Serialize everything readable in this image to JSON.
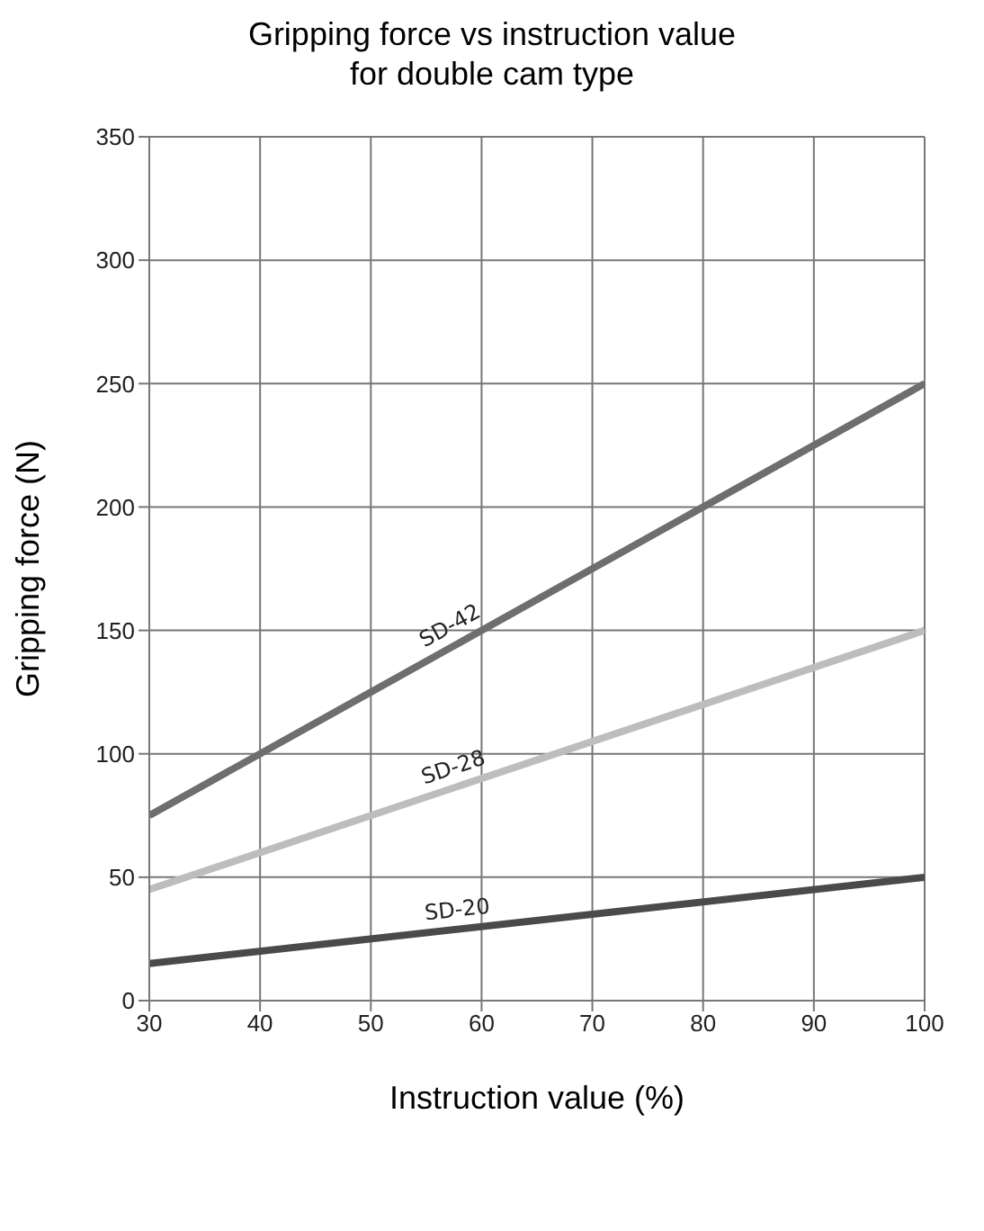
{
  "chart_data": {
    "type": "line",
    "title": "Gripping force vs instruction value\nfor double cam type",
    "xlabel": "Instruction value (%)",
    "ylabel": "Gripping force (N)",
    "x": [
      30,
      100
    ],
    "series": [
      {
        "name": "SD-42",
        "color": "#6e6e6e",
        "values": [
          75,
          250
        ]
      },
      {
        "name": "SD-28",
        "color": "#bdbdbd",
        "values": [
          45,
          150
        ]
      },
      {
        "name": "SD-20",
        "color": "#4a4a4a",
        "values": [
          15,
          50
        ]
      }
    ],
    "xlim": [
      30,
      100
    ],
    "xticks": [
      30,
      40,
      50,
      60,
      70,
      80,
      90,
      100
    ],
    "ylim": [
      0,
      350
    ],
    "yticks": [
      0,
      50,
      100,
      150,
      200,
      250,
      300,
      350
    ],
    "grid": true,
    "legend": false,
    "marker": "none",
    "line_style": "solid"
  }
}
